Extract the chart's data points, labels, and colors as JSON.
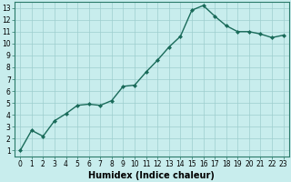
{
  "x": [
    0,
    1,
    2,
    3,
    4,
    5,
    6,
    7,
    8,
    9,
    10,
    11,
    12,
    13,
    14,
    15,
    16,
    17,
    18,
    19,
    20,
    21,
    22,
    23
  ],
  "y": [
    1.0,
    2.7,
    2.2,
    3.5,
    4.1,
    4.8,
    4.9,
    4.8,
    5.2,
    6.4,
    6.5,
    7.6,
    8.6,
    9.7,
    10.6,
    12.8,
    13.2,
    12.3,
    11.5,
    11.0,
    11.0,
    10.8,
    10.5,
    10.7
  ],
  "line_color": "#1a6b5a",
  "marker": "D",
  "marker_size": 2.0,
  "bg_color": "#c8eded",
  "grid_color": "#9dcece",
  "xlabel": "Humidex (Indice chaleur)",
  "xlabel_fontsize": 7,
  "xlim": [
    -0.5,
    23.5
  ],
  "ylim": [
    0.5,
    13.5
  ],
  "yticks": [
    1,
    2,
    3,
    4,
    5,
    6,
    7,
    8,
    9,
    10,
    11,
    12,
    13
  ],
  "xticks": [
    0,
    1,
    2,
    3,
    4,
    5,
    6,
    7,
    8,
    9,
    10,
    11,
    12,
    13,
    14,
    15,
    16,
    17,
    18,
    19,
    20,
    21,
    22,
    23
  ],
  "tick_fontsize": 5.5,
  "line_width": 1.0,
  "spine_color": "#2a7a6a"
}
